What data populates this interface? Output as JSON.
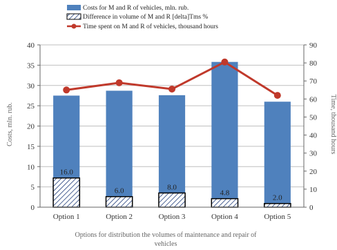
{
  "chart_data": {
    "type": "bar",
    "categories": [
      "Option 1",
      "Option 2",
      "Option 3",
      "Option 4",
      "Option 5"
    ],
    "series": [
      {
        "name": "Costs for M and R of vehicles, mln. rub.",
        "kind": "bar",
        "axis": "left",
        "values": [
          27.5,
          28.7,
          27.6,
          35.8,
          26.0
        ],
        "color": "#4f81bd"
      },
      {
        "name": "Difference in volume of M and R [delta]Tms %",
        "kind": "bar-hatched",
        "axis": "left",
        "values": [
          7.2,
          2.6,
          3.5,
          2.1,
          0.9
        ],
        "labels": [
          "16.0",
          "6.0",
          "8.0",
          "4.8",
          "2.0"
        ],
        "color": "#1f3c7a"
      },
      {
        "name": "Time spent on M and R of vehicles, thousand hours",
        "kind": "line",
        "axis": "right",
        "values": [
          65,
          69,
          65.5,
          80.5,
          62
        ],
        "color": "#c0392b"
      }
    ],
    "ylabel": "Costs, mln. rub.",
    "y2label": "Time, thousand hours",
    "xlabel": "Options for distribution the volumes of maintenance and repair of vehicles",
    "ylim": [
      0,
      40
    ],
    "y2lim": [
      0,
      90
    ],
    "yticks": [
      0,
      5,
      10,
      15,
      20,
      25,
      30,
      35,
      40
    ],
    "y2ticks": [
      0,
      10,
      20,
      30,
      40,
      50,
      60,
      70,
      80,
      90
    ],
    "grid": true,
    "legend_position": "top"
  }
}
